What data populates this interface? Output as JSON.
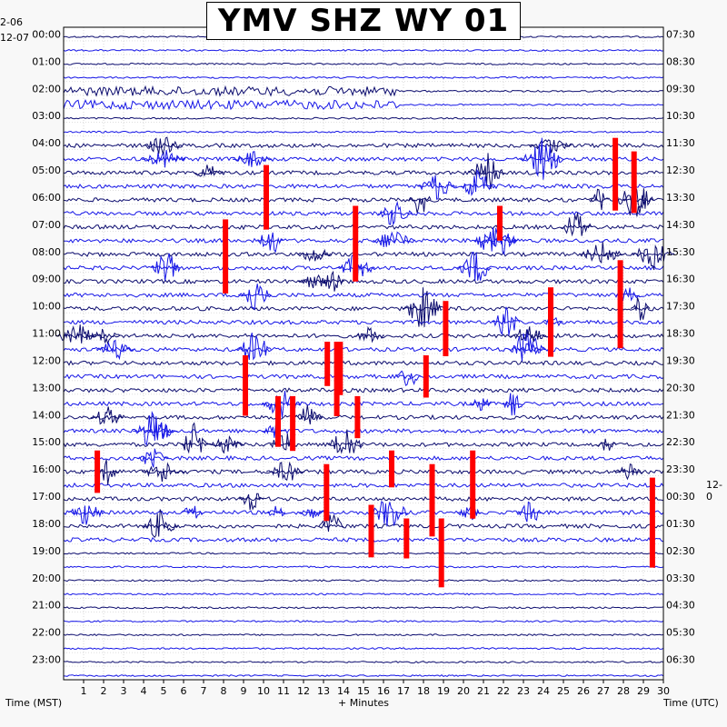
{
  "title": "YMV SHZ WY 01",
  "date_labels": {
    "left_top_prev": "2-06",
    "left_top": "12-07",
    "right_mid": "12-0"
  },
  "axis_captions": {
    "left": "Time (MST)",
    "center": "+ Minutes",
    "right": "Time (UTC)"
  },
  "colors": {
    "trace_dark": "#0c0c6e",
    "trace_blue": "#1616e6",
    "saturated": "#ff0000",
    "grid": "#bdbdbd",
    "background": "#f8f8f8"
  },
  "chart_data": {
    "type": "heatmap",
    "title": "YMV SHZ WY 01",
    "xlabel": "+ Minutes",
    "ylabel_left": "Time (MST)",
    "ylabel_right": "Time (UTC)",
    "x_ticks": [
      "1",
      "2",
      "3",
      "4",
      "5",
      "6",
      "7",
      "8",
      "9",
      "10",
      "11",
      "12",
      "13",
      "14",
      "15",
      "16",
      "17",
      "18",
      "19",
      "20",
      "21",
      "22",
      "23",
      "24",
      "25",
      "26",
      "27",
      "28",
      "29",
      "30"
    ],
    "xlim": [
      0,
      30
    ],
    "left_ticks": [
      "00:00",
      "01:00",
      "02:00",
      "03:00",
      "04:00",
      "05:00",
      "06:00",
      "07:00",
      "08:00",
      "09:00",
      "10:00",
      "11:00",
      "12:00",
      "13:00",
      "14:00",
      "15:00",
      "16:00",
      "17:00",
      "18:00",
      "19:00",
      "20:00",
      "21:00",
      "22:00",
      "23:00"
    ],
    "right_ticks": [
      "07:30",
      "08:30",
      "09:30",
      "10:30",
      "11:30",
      "12:30",
      "13:30",
      "14:30",
      "15:30",
      "16:30",
      "17:30",
      "18:30",
      "19:30",
      "20:30",
      "21:30",
      "22:30",
      "23:30",
      "00:30",
      "01:30",
      "02:30",
      "03:30",
      "04:30",
      "05:30",
      "06:30"
    ],
    "rows_per_hour": 2,
    "row_minutes": 30,
    "active_hours": [
      "04:00",
      "05:00",
      "06:00",
      "07:00",
      "08:00",
      "09:00",
      "10:00",
      "11:00",
      "12:00",
      "13:00",
      "14:00",
      "15:00",
      "16:00",
      "17:00",
      "18:00"
    ],
    "note_color_coding": "alternating trace colors per row; red marks clipped amplitude"
  }
}
